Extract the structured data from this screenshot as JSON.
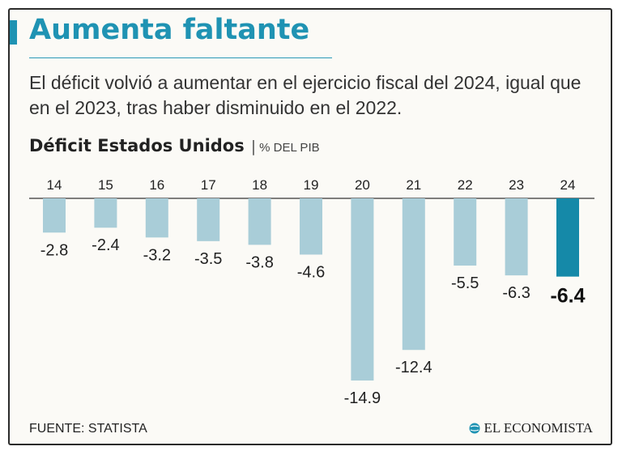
{
  "header": {
    "title": "Aumenta faltante",
    "subtitle": "El déficit volvió a aumentar en el ejercicio fiscal del 2024, igual que en el 2023, tras haber disminuido en el 2022."
  },
  "chart_heading": {
    "main": "Déficit Estados Unidos",
    "separator": "|",
    "unit": "% DEL PIB"
  },
  "footer": {
    "source": "FUENTE: STATISTA",
    "brand": "EL ECONOMISTA"
  },
  "colors": {
    "accent": "#1f93b3",
    "bar": "#a9cdd8",
    "bar_highlight": "#1589a8",
    "baseline": "#333333"
  },
  "chart_data": {
    "type": "bar",
    "title": "Déficit Estados Unidos",
    "ylabel": "% DEL PIB",
    "categories": [
      "14",
      "15",
      "16",
      "17",
      "18",
      "19",
      "20",
      "21",
      "22",
      "23",
      "24"
    ],
    "values": [
      -2.8,
      -2.4,
      -3.2,
      -3.5,
      -3.8,
      -4.6,
      -14.9,
      -12.4,
      -5.5,
      -6.3,
      -6.4
    ],
    "labels": [
      "-2.8",
      "-2.4",
      "-3.2",
      "-3.5",
      "-3.8",
      "-4.6",
      "-14.9",
      "-12.4",
      "-5.5",
      "-6.3",
      "-6.4"
    ],
    "highlight_index": 10,
    "ylim": [
      -15,
      0
    ],
    "grid": false,
    "legend": "none",
    "category_axis": "top"
  }
}
